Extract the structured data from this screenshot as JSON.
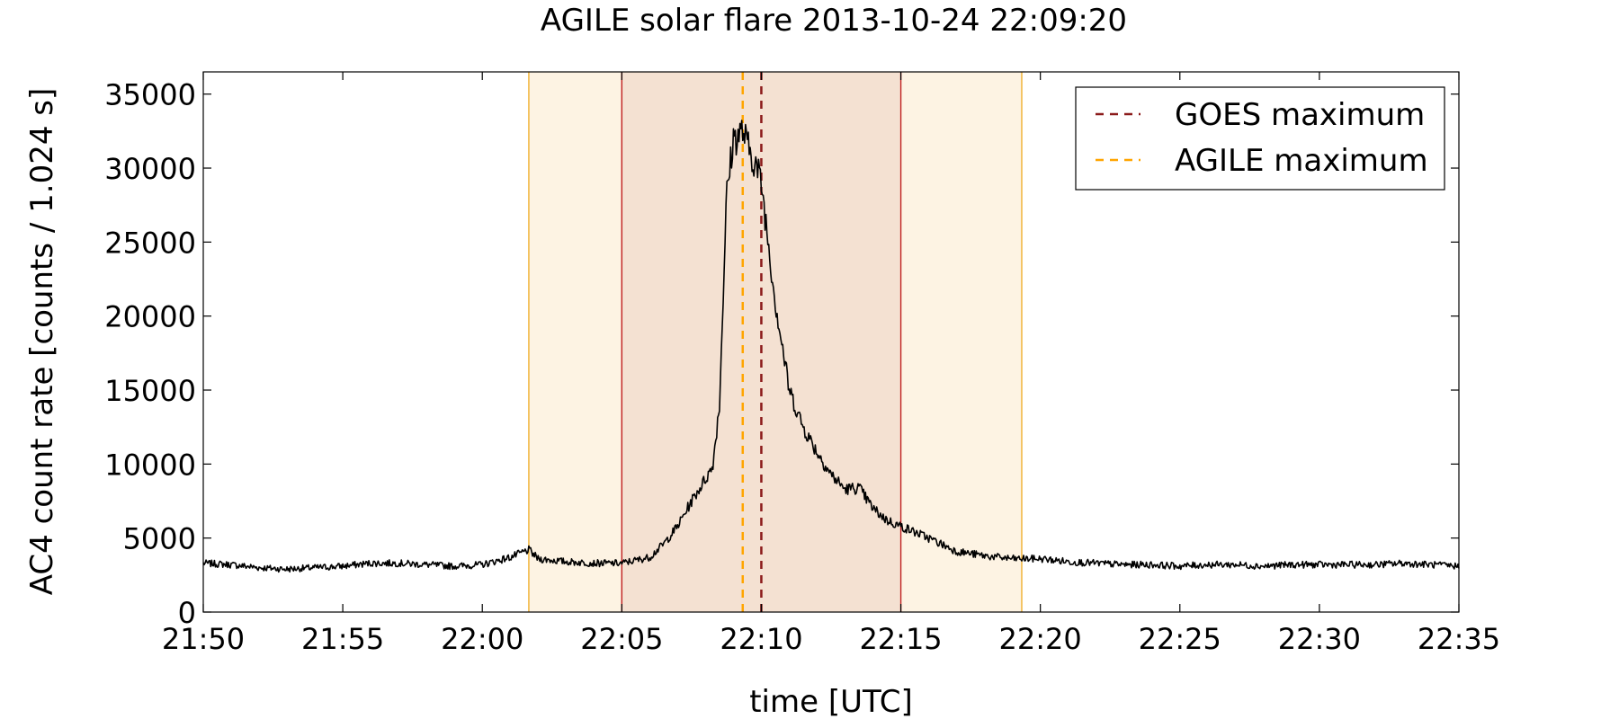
{
  "chart_data": {
    "type": "line",
    "title": "AGILE solar flare 2013-10-24 22:09:20",
    "xlabel": "time [UTC]",
    "ylabel": "AC4 count rate [counts / 1.024 s]",
    "xlim": [
      "21:50",
      "22:35"
    ],
    "ylim": [
      0,
      36500
    ],
    "x_ticks": [
      "21:50",
      "21:55",
      "22:00",
      "22:05",
      "22:10",
      "22:15",
      "22:20",
      "22:25",
      "22:30",
      "22:35"
    ],
    "y_ticks": [
      0,
      5000,
      10000,
      15000,
      20000,
      25000,
      30000,
      35000
    ],
    "grid": false,
    "legend_position": "top-right",
    "shaded_intervals": [
      {
        "start": "22:01:40",
        "end": "22:19:20",
        "fill": "#fdf3e3",
        "edge": "#f0b030"
      },
      {
        "start": "22:05:00",
        "end": "22:15:00",
        "fill": "#f4e1d2",
        "edge": "#c02020"
      }
    ],
    "vertical_markers": [
      {
        "name": "GOES maximum",
        "time": "22:10:00",
        "color": "#8b1a1a",
        "style": "dashed"
      },
      {
        "name": "AGILE maximum",
        "time": "22:09:20",
        "color": "#ffa500",
        "style": "dashed"
      }
    ],
    "series": [
      {
        "color": "#000000",
        "x": [
          "21:50:00",
          "21:51:00",
          "21:52:00",
          "21:53:00",
          "21:54:00",
          "21:55:00",
          "21:56:00",
          "21:57:00",
          "21:58:00",
          "21:59:00",
          "22:00:00",
          "22:01:00",
          "22:01:40",
          "22:02:00",
          "22:03:00",
          "22:04:00",
          "22:05:00",
          "22:06:00",
          "22:06:30",
          "22:07:00",
          "22:07:30",
          "22:08:00",
          "22:08:15",
          "22:08:30",
          "22:08:45",
          "22:09:00",
          "22:09:10",
          "22:09:20",
          "22:09:30",
          "22:09:45",
          "22:10:00",
          "22:10:15",
          "22:10:30",
          "22:10:45",
          "22:11:00",
          "22:11:30",
          "22:12:00",
          "22:12:30",
          "22:13:00",
          "22:13:30",
          "22:14:00",
          "22:14:30",
          "22:15:00",
          "22:15:30",
          "22:16:00",
          "22:17:00",
          "22:18:00",
          "22:19:00",
          "22:20:00",
          "22:21:00",
          "22:22:00",
          "22:23:00",
          "22:24:00",
          "22:25:00",
          "22:26:00",
          "22:27:00",
          "22:28:00",
          "22:29:00",
          "22:30:00",
          "22:31:00",
          "22:32:00",
          "22:33:00",
          "22:34:00",
          "22:35:00"
        ],
        "y": [
          3300,
          3200,
          3000,
          2900,
          3000,
          3100,
          3300,
          3300,
          3200,
          3100,
          3200,
          3700,
          4200,
          3600,
          3400,
          3300,
          3300,
          3700,
          4600,
          5800,
          7500,
          9000,
          9800,
          14000,
          28000,
          32000,
          32200,
          32500,
          31500,
          30500,
          29000,
          25000,
          21000,
          18000,
          15000,
          12500,
          10800,
          9300,
          8300,
          8400,
          7000,
          6200,
          5800,
          5400,
          5000,
          4100,
          3800,
          3600,
          3600,
          3400,
          3300,
          3200,
          3200,
          3100,
          3200,
          3200,
          3100,
          3200,
          3200,
          3200,
          3200,
          3300,
          3200,
          3100
        ]
      }
    ]
  }
}
